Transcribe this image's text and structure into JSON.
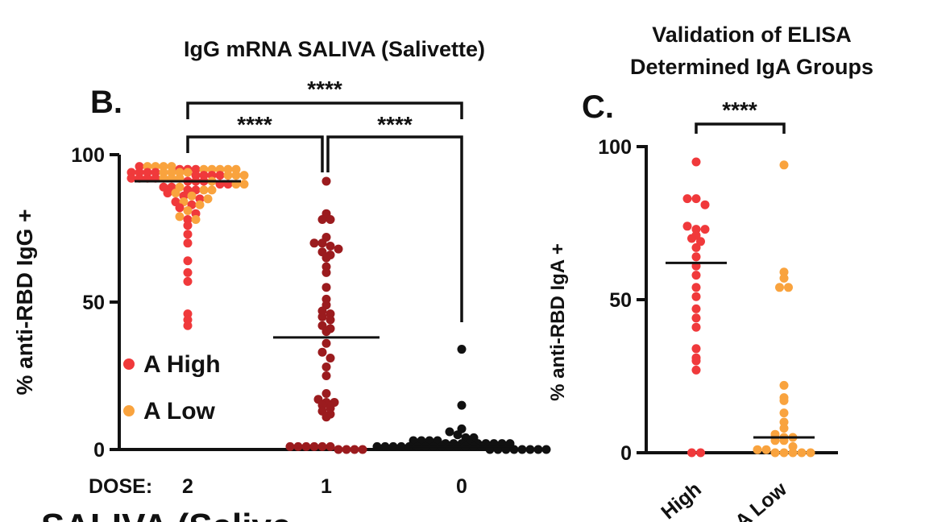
{
  "chart_data": [
    {
      "type": "scatter",
      "panel_label": "B.",
      "title": "IgG mRNA SALIVA (Salivette)",
      "ylabel": "% anti-RBD IgG +",
      "x_prefix": "DOSE:",
      "categories": [
        "2",
        "1",
        "0"
      ],
      "ylim": [
        0,
        100
      ],
      "yticks": [
        0,
        50,
        100
      ],
      "legend": {
        "placement": "lower-left",
        "entries": [
          {
            "label": "A High",
            "color": "#f0393b"
          },
          {
            "label": "A Low",
            "color": "#f9a33e"
          }
        ]
      },
      "series": [
        {
          "category": "2",
          "group": "A High",
          "color": "#f0393b",
          "values": [
            96,
            95,
            95,
            95,
            94,
            94,
            94,
            94,
            93,
            93,
            93,
            93,
            92,
            92,
            92,
            92,
            91,
            91,
            91,
            90,
            90,
            89,
            89,
            88,
            88,
            87,
            86,
            85,
            84,
            83,
            82,
            80,
            78,
            76,
            73,
            70,
            64,
            60,
            57,
            46,
            44,
            42
          ]
        },
        {
          "category": "2",
          "group": "A Low",
          "color": "#f9a33e",
          "values": [
            96,
            96,
            96,
            96,
            95,
            95,
            95,
            95,
            95,
            94,
            94,
            94,
            94,
            93,
            93,
            93,
            92,
            92,
            92,
            91,
            90,
            90,
            89,
            88,
            88,
            87,
            86,
            85,
            84,
            83,
            81,
            79,
            78
          ]
        },
        {
          "category": "1",
          "group": "",
          "color": "#9b1b1e",
          "values": [
            91,
            80,
            78,
            78,
            72,
            70,
            70,
            69,
            68,
            67,
            66,
            65,
            62,
            60,
            55,
            51,
            49,
            47,
            46,
            45,
            44,
            42,
            41,
            40,
            36,
            33,
            31,
            28,
            25,
            19,
            17,
            16,
            16,
            15,
            14,
            13,
            12,
            11,
            1,
            1,
            1,
            1,
            1,
            1,
            0,
            0,
            0,
            0
          ]
        },
        {
          "category": "0",
          "group": "",
          "color": "#111111",
          "values": [
            34,
            15,
            7,
            6,
            5,
            4,
            4,
            3,
            3,
            3,
            3,
            2,
            2,
            2,
            2,
            2,
            2,
            2,
            2,
            2,
            1,
            1,
            1,
            1,
            1,
            1,
            1,
            1,
            1,
            1,
            1,
            1,
            1,
            1,
            0,
            0,
            0,
            0,
            0,
            0,
            0,
            0
          ]
        }
      ],
      "medians": [
        91,
        38,
        1
      ],
      "comparisons": [
        {
          "from": "2",
          "to": "0",
          "label": "****"
        },
        {
          "from": "2",
          "to": "1",
          "label": "****"
        },
        {
          "from": "1",
          "to": "0",
          "label": "****"
        }
      ],
      "bottom_fragment": "... SALIVA (Salive ..."
    },
    {
      "type": "scatter",
      "panel_label": "C.",
      "title_lines": [
        "Validation of ELISA",
        "Determined IgA Groups"
      ],
      "ylabel": "% anti-RBD IgA +",
      "categories": [
        "High",
        "Low"
      ],
      "category_labels": [
        "High",
        "A Low"
      ],
      "ylim": [
        0,
        100
      ],
      "yticks": [
        0,
        50,
        100
      ],
      "series": [
        {
          "category": "High",
          "color": "#f0393b",
          "values": [
            95,
            83,
            83,
            81,
            74,
            73,
            73,
            71,
            70,
            69,
            67,
            64,
            61,
            58,
            54,
            51,
            47,
            44,
            41,
            34,
            31,
            30,
            27,
            0,
            0
          ]
        },
        {
          "category": "Low",
          "color": "#f9a33e",
          "values": [
            94,
            59,
            57,
            54,
            54,
            22,
            18,
            17,
            13,
            10,
            8,
            6,
            5,
            5,
            4,
            4,
            2,
            1,
            1,
            0,
            0,
            0,
            0,
            0
          ]
        }
      ],
      "medians": [
        62,
        5
      ],
      "comparisons": [
        {
          "from": "High",
          "to": "Low",
          "label": "****"
        }
      ]
    }
  ]
}
